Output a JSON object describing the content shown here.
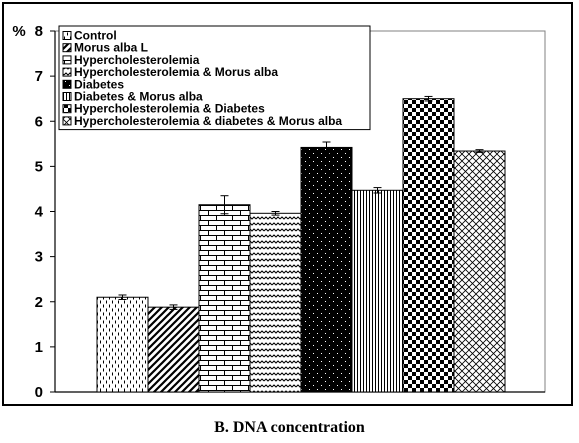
{
  "chart_data": {
    "type": "bar",
    "title": "",
    "xlabel": "",
    "ylabel": "%",
    "caption": "B. DNA concentration",
    "ylim": [
      0,
      8
    ],
    "yticks": [
      "0",
      "1",
      "2",
      "3",
      "4",
      "5",
      "6",
      "7",
      "8"
    ],
    "grid": false,
    "legend_position": "top-left",
    "series": [
      {
        "name": "Control",
        "value": 2.1,
        "error": 0.05,
        "pattern": "dashes"
      },
      {
        "name": "Morus alba L",
        "value": 1.88,
        "error": 0.05,
        "pattern": "diagonal"
      },
      {
        "name": "Hypercholesterolemia",
        "value": 4.15,
        "error": 0.2,
        "pattern": "bricks"
      },
      {
        "name": "Hypercholesterolemia & Morus alba",
        "value": 3.96,
        "error": 0.04,
        "pattern": "zigzag"
      },
      {
        "name": "Diabetes",
        "value": 5.42,
        "error": 0.12,
        "pattern": "dots-on-black"
      },
      {
        "name": "Diabetes & Morus alba",
        "value": 4.47,
        "error": 0.06,
        "pattern": "vertical"
      },
      {
        "name": "Hypercholesterolemia & Diabetes",
        "value": 6.5,
        "error": 0.05,
        "pattern": "checker"
      },
      {
        "name": "Hypercholesterolemia & diabetes & Morus alba",
        "value": 5.34,
        "error": 0.03,
        "pattern": "crosshatch"
      }
    ]
  }
}
